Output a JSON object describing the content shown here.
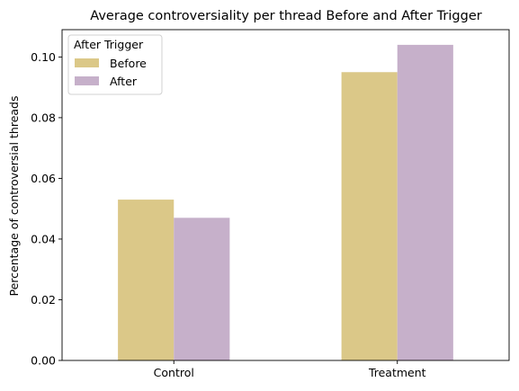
{
  "chart_data": {
    "type": "bar",
    "title": "Average controversiality per thread Before and After Trigger",
    "xlabel": "",
    "ylabel": "Percentage of controversial threads",
    "categories": [
      "Control",
      "Treatment"
    ],
    "series": [
      {
        "name": "Before",
        "values": [
          0.053,
          0.095
        ],
        "color": "#dbc888"
      },
      {
        "name": "After",
        "values": [
          0.047,
          0.104
        ],
        "color": "#c6b0ca"
      }
    ],
    "ylim": [
      0,
      0.109
    ],
    "yticks": [
      "0.00",
      "0.02",
      "0.04",
      "0.06",
      "0.08",
      "0.10"
    ],
    "legend": {
      "title": "After Trigger",
      "position": "top-left"
    },
    "grid": false
  }
}
